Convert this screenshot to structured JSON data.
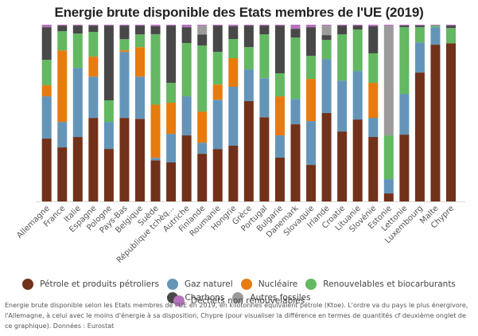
{
  "chart_data": {
    "type": "bar",
    "stacked": "percent",
    "title": "Energie brute disponible des Etats membres de l'UE (2019)",
    "xlabel": "",
    "ylabel": "",
    "ylim": [
      0,
      100
    ],
    "grid": false,
    "legend_position": "bottom",
    "categories": [
      "Allemagne",
      "France",
      "Italie",
      "Espagne",
      "Pologne",
      "Pays-Bas",
      "Belgique",
      "Suède",
      "République tchèq...",
      "Autriche",
      "Finlande",
      "Roumanie",
      "Hongrie",
      "Grèce",
      "Portugal",
      "Bulgarie",
      "Danemark",
      "Slovaquie",
      "Irlande",
      "Croatie",
      "Lituanie",
      "Slovénie",
      "Estonie",
      "Lettonie",
      "Luxembourg",
      "Malte",
      "Chypre"
    ],
    "series": [
      {
        "name": "Pétrole et produits pétroliers",
        "color": "#72311a",
        "values": [
          35.6,
          30.6,
          36.5,
          47.3,
          29.7,
          47.3,
          46.8,
          23.4,
          22.1,
          37.4,
          27.0,
          29.7,
          31.5,
          56.8,
          47.7,
          24.8,
          43.7,
          20.7,
          50.0,
          39.6,
          46.4,
          36.5,
          4.5,
          37.8,
          73.0,
          88.7,
          89.6
        ]
      },
      {
        "name": "Gaz naturel",
        "color": "#6495b9",
        "values": [
          23.9,
          14.4,
          39.2,
          23.4,
          15.3,
          37.4,
          23.9,
          1.4,
          16.2,
          22.1,
          6.3,
          27.9,
          33.3,
          18.0,
          22.1,
          12.6,
          14.4,
          24.8,
          30.6,
          28.8,
          27.5,
          10.8,
          8.1,
          23.0,
          17.1,
          9.9,
          0
        ]
      },
      {
        "name": "Nucléaire",
        "color": "#e77b0e",
        "values": [
          6.3,
          40.5,
          0,
          11.3,
          0,
          0.9,
          16.7,
          30.2,
          17.6,
          0,
          17.6,
          8.6,
          16.2,
          0,
          0,
          22.1,
          0,
          23.9,
          0,
          0,
          0,
          19.8,
          0,
          0,
          0,
          0,
          0
        ]
      },
      {
        "name": "Renouvelables et biocarburants",
        "color": "#63b861",
        "values": [
          14.4,
          10.8,
          19.4,
          14.0,
          12.2,
          6.3,
          7.2,
          40.1,
          11.3,
          30.2,
          37.4,
          18.5,
          10.8,
          12.6,
          24.8,
          13.1,
          34.7,
          13.1,
          10.8,
          26.1,
          23.4,
          16.7,
          24.8,
          37.8,
          8.6,
          0.9,
          8.6
        ]
      },
      {
        "name": "Charbons",
        "color": "#484848",
        "values": [
          18.5,
          3.2,
          4.5,
          3.6,
          42.3,
          7.7,
          5.0,
          4.5,
          32.4,
          9.0,
          6.3,
          14.9,
          7.2,
          12.2,
          5.0,
          27.0,
          5.0,
          16.2,
          2.7,
          5.0,
          2.3,
          15.3,
          0,
          0.9,
          0.9,
          0,
          1.4
        ]
      },
      {
        "name": "Autres fossiles",
        "color": "#9b9b9b",
        "values": [
          0,
          0,
          0,
          0,
          0,
          0,
          0,
          0,
          0,
          0,
          5.0,
          0,
          0,
          0,
          0,
          0,
          0,
          0,
          5.4,
          0,
          0,
          0,
          62.2,
          0,
          0,
          0,
          0
        ]
      },
      {
        "name": "Déchets non renouvelables",
        "color": "#b772bd",
        "values": [
          1.4,
          0.5,
          0.5,
          0.5,
          0.5,
          0.5,
          0.5,
          0.9,
          0.5,
          1.4,
          0.5,
          0.5,
          0.9,
          0.5,
          0.5,
          0.5,
          2.3,
          1.4,
          0.5,
          0.5,
          0.5,
          0.9,
          0.5,
          0.5,
          0.5,
          0.5,
          0.5
        ]
      }
    ]
  },
  "legend": {
    "items": [
      {
        "label": "Pétrole et produits pétroliers",
        "color": "#72311a"
      },
      {
        "label": "Gaz naturel",
        "color": "#6495b9"
      },
      {
        "label": "Nucléaire",
        "color": "#e77b0e"
      },
      {
        "label": "Renouvelables et biocarburants",
        "color": "#63b861"
      },
      {
        "label": "Charbons",
        "color": "#484848"
      },
      {
        "label": "Autres fossiles",
        "color": "#9b9b9b"
      },
      {
        "label": "Déchets non renouvelables",
        "color": "#b772bd"
      }
    ]
  },
  "caption": "Energie brute disponible selon les Etats membres de l'UE en 2019, en kilotonnes équivalent pétrole (Ktoe). L'ordre va du pays le plus énergivore, l'Allemagne, à celui avec le moins d'énergie à sa disposition, Chypre (pour visualiser la différence en termes de quantités cf deuxième onglet de ce graphique). Données : Eurostat"
}
